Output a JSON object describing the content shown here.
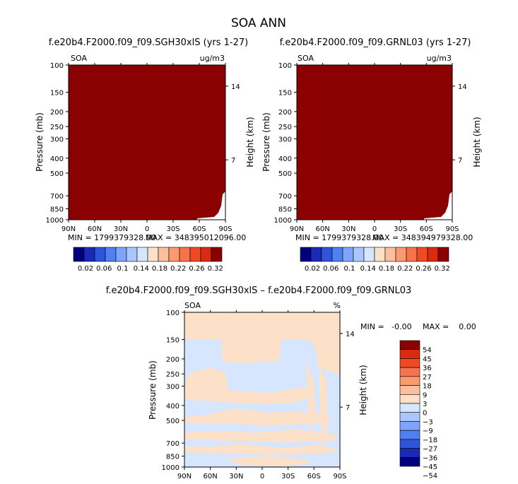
{
  "main_title": "SOA ANN",
  "colors": {
    "dark_red": "#8b0000",
    "pale_peach": "#fde0c8",
    "pale_blue": "#d6e6ff",
    "seq": [
      "#00007f",
      "#1a29b8",
      "#2e55d9",
      "#4f7ff0",
      "#7fa5fb",
      "#a9c6ff",
      "#d6e6ff",
      "#fde0c8",
      "#fcbf9d",
      "#fb9a6f",
      "#f7734b",
      "#ef4a24",
      "#d92b10",
      "#8b0000"
    ],
    "diff": [
      "#00007f",
      "#1a29b8",
      "#2e55d9",
      "#4f7ff0",
      "#7fa5fb",
      "#a9c6ff",
      "#d6e6ff",
      "#fde0c8",
      "#fcbf9d",
      "#fb9a6f",
      "#f7734b",
      "#ef4a24",
      "#d92b10",
      "#8b0000"
    ]
  },
  "chart_data": [
    {
      "type": "heatmap",
      "title": "f.e20b4.F2000.f09_f09.SGH30xlS (yrs 1-27)",
      "field_label": "SOA",
      "units": "ug/m3",
      "ylabel": "Pressure (mb)",
      "ylabel_right": "Height (km)",
      "x_ticks": [
        "90N",
        "60N",
        "30N",
        "0",
        "30S",
        "60S",
        "90S"
      ],
      "y_ticks": [
        "100",
        "150",
        "200",
        "250",
        "300",
        "400",
        "500",
        "700",
        "850",
        "1000"
      ],
      "y_right_ticks": [
        "14",
        "7"
      ],
      "min_label": "MIN = 1799379328.00",
      "max_label": "MAX = 348395012096.00",
      "fill": "all values above 0.32 (top color bin) except a small white region near 1000 mb at the southern edge",
      "colorbar_labels": [
        "0.02",
        "0.06",
        "0.1",
        "0.14",
        "0.18",
        "0.22",
        "0.26",
        "0.32"
      ]
    },
    {
      "type": "heatmap",
      "title": "f.e20b4.F2000.f09_f09.GRNL03 (yrs 1-27)",
      "field_label": "SOA",
      "units": "ug/m3",
      "ylabel": "Pressure (mb)",
      "ylabel_right": "Height (km)",
      "x_ticks": [
        "90N",
        "60N",
        "30N",
        "0",
        "30S",
        "60S",
        "90S"
      ],
      "y_ticks": [
        "100",
        "150",
        "200",
        "250",
        "300",
        "400",
        "500",
        "700",
        "850",
        "1000"
      ],
      "y_right_ticks": [
        "14",
        "7"
      ],
      "min_label": "MIN = 1799379328.00",
      "max_label": "MAX = 348394979328.00",
      "fill": "all values above 0.32 (top color bin) except a small white region near 1000 mb at the southern edge",
      "colorbar_labels": [
        "0.02",
        "0.06",
        "0.1",
        "0.14",
        "0.18",
        "0.22",
        "0.26",
        "0.32"
      ]
    },
    {
      "type": "heatmap",
      "title": "f.e20b4.F2000.f09_f09.SGH30xlS – f.e20b4.F2000.f09_f09.GRNL03",
      "field_label": "SOA",
      "units": "%",
      "ylabel": "Pressure (mb)",
      "ylabel_right": "Height (km)",
      "x_ticks": [
        "90N",
        "60N",
        "30N",
        "0",
        "30S",
        "60S",
        "90S"
      ],
      "y_ticks": [
        "100",
        "150",
        "200",
        "250",
        "300",
        "400",
        "500",
        "700",
        "850",
        "1000"
      ],
      "y_right_ticks": [
        "14",
        "7"
      ],
      "min_label": "MIN =   -0.00",
      "max_label": "MAX =    0.00",
      "fill": "mostly 0 to 3 (pale peach) above 150 mb; interleaved bands of 0 to 3 and -3 to 0 (pale blue) below 150 mb",
      "colorbar_labels": [
        "54",
        "45",
        "36",
        "27",
        "18",
        "9",
        "3",
        "0",
        "−3",
        "−9",
        "−18",
        "−27",
        "−36",
        "−45",
        "−54"
      ]
    }
  ]
}
